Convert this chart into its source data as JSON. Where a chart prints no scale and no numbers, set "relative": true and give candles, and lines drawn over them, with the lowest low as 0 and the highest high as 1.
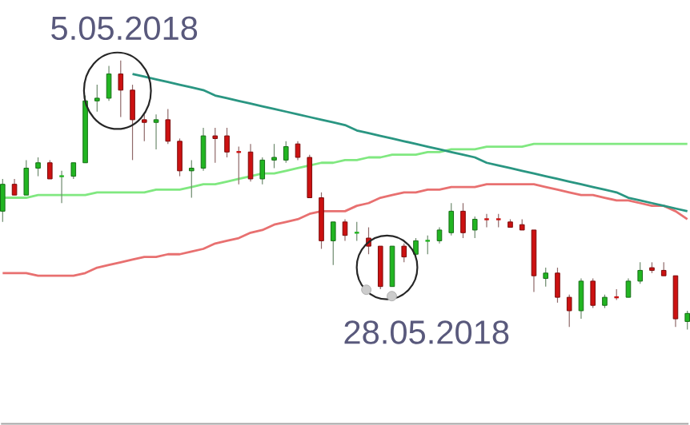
{
  "chart_data": {
    "type": "candlestick",
    "relative": true,
    "categories": [
      null,
      null,
      null,
      null,
      null,
      null,
      null,
      null,
      null,
      null,
      null,
      null,
      null,
      null,
      null,
      null,
      null,
      null,
      null,
      null,
      null,
      null,
      null,
      null,
      null,
      null,
      null,
      null,
      null,
      null,
      null,
      null,
      null,
      null,
      null,
      null,
      null,
      null,
      null,
      null,
      null,
      null,
      null,
      null,
      null,
      null,
      null,
      null,
      null,
      null,
      null,
      null,
      null,
      null,
      null,
      null,
      null,
      null,
      null
    ],
    "ohlc": [
      [
        0.44,
        0.56,
        0.4,
        0.54
      ],
      [
        0.54,
        0.56,
        0.5,
        0.5
      ],
      [
        0.5,
        0.63,
        0.5,
        0.6
      ],
      [
        0.6,
        0.64,
        0.57,
        0.62
      ],
      [
        0.62,
        0.63,
        0.56,
        0.56
      ],
      [
        0.57,
        0.59,
        0.47,
        0.57
      ],
      [
        0.57,
        0.62,
        0.56,
        0.62
      ],
      [
        0.62,
        0.87,
        0.62,
        0.85
      ],
      [
        0.85,
        0.91,
        0.81,
        0.86
      ],
      [
        0.86,
        0.98,
        0.85,
        0.95
      ],
      [
        0.95,
        1.0,
        0.79,
        0.89
      ],
      [
        0.89,
        0.91,
        0.63,
        0.78
      ],
      [
        0.78,
        0.8,
        0.7,
        0.77
      ],
      [
        0.77,
        0.8,
        0.67,
        0.78
      ],
      [
        0.78,
        0.82,
        0.69,
        0.7
      ],
      [
        0.7,
        0.71,
        0.57,
        0.59
      ],
      [
        0.59,
        0.63,
        0.49,
        0.6
      ],
      [
        0.6,
        0.75,
        0.59,
        0.72
      ],
      [
        0.72,
        0.75,
        0.62,
        0.71
      ],
      [
        0.72,
        0.75,
        0.64,
        0.66
      ],
      [
        0.66,
        0.68,
        0.54,
        0.66
      ],
      [
        0.66,
        0.69,
        0.55,
        0.56
      ],
      [
        0.56,
        0.64,
        0.54,
        0.63
      ],
      [
        0.63,
        0.69,
        0.6,
        0.64
      ],
      [
        0.63,
        0.7,
        0.62,
        0.68
      ],
      [
        0.69,
        0.7,
        0.63,
        0.64
      ],
      [
        0.64,
        0.65,
        0.49,
        0.49
      ],
      [
        0.49,
        0.51,
        0.3,
        0.33
      ],
      [
        0.33,
        0.4,
        0.24,
        0.4
      ],
      [
        0.4,
        0.41,
        0.33,
        0.35
      ],
      [
        0.36,
        0.4,
        0.33,
        0.36
      ],
      [
        0.34,
        0.38,
        0.28,
        0.31
      ],
      [
        0.31,
        0.31,
        0.15,
        0.16
      ],
      [
        0.16,
        0.31,
        0.16,
        0.31
      ],
      [
        0.31,
        0.32,
        0.25,
        0.27
      ],
      [
        0.28,
        0.34,
        0.27,
        0.33
      ],
      [
        0.33,
        0.35,
        0.28,
        0.33
      ],
      [
        0.33,
        0.38,
        0.32,
        0.37
      ],
      [
        0.36,
        0.47,
        0.35,
        0.44
      ],
      [
        0.44,
        0.47,
        0.34,
        0.36
      ],
      [
        0.37,
        0.42,
        0.34,
        0.41
      ],
      [
        0.41,
        0.43,
        0.38,
        0.41
      ],
      [
        0.41,
        0.43,
        0.38,
        0.41
      ],
      [
        0.4,
        0.41,
        0.38,
        0.38
      ],
      [
        0.39,
        0.41,
        0.37,
        0.37
      ],
      [
        0.37,
        0.37,
        0.14,
        0.2
      ],
      [
        0.19,
        0.23,
        0.16,
        0.21
      ],
      [
        0.21,
        0.23,
        0.1,
        0.12
      ],
      [
        0.12,
        0.13,
        0.01,
        0.07
      ],
      [
        0.07,
        0.19,
        0.04,
        0.18
      ],
      [
        0.18,
        0.19,
        0.08,
        0.09
      ],
      [
        0.09,
        0.13,
        0.08,
        0.12
      ],
      [
        0.12,
        0.15,
        0.11,
        0.12
      ],
      [
        0.12,
        0.19,
        0.12,
        0.18
      ],
      [
        0.18,
        0.25,
        0.17,
        0.22
      ],
      [
        0.23,
        0.25,
        0.21,
        0.22
      ],
      [
        0.22,
        0.25,
        0.2,
        0.2
      ],
      [
        0.2,
        0.2,
        0.01,
        0.04
      ],
      [
        0.03,
        0.07,
        0.0,
        0.06
      ]
    ],
    "colors": [
      "#22b522",
      "#cc1111",
      "#22b522",
      "#22b522",
      "#cc1111",
      "#22b522",
      "#22b522",
      "#22b522",
      "#22b522",
      "#22b522",
      "#cc1111",
      "#cc1111",
      "#cc1111",
      "#22b522",
      "#cc1111",
      "#cc1111",
      "#22b522",
      "#22b522",
      "#cc1111",
      "#cc1111",
      "#cc1111",
      "#cc1111",
      "#22b522",
      "#22b522",
      "#22b522",
      "#cc1111",
      "#cc1111",
      "#cc1111",
      "#22b522",
      "#cc1111",
      "#22b522",
      "#cc1111",
      "#cc1111",
      "#22b522",
      "#cc1111",
      "#22b522",
      "#22b522",
      "#22b522",
      "#22b522",
      "#cc1111",
      "#22b522",
      "#cc1111",
      "#cc1111",
      "#cc1111",
      "#cc1111",
      "#cc1111",
      "#22b522",
      "#cc1111",
      "#cc1111",
      "#22b522",
      "#cc1111",
      "#22b522",
      "#cc1111",
      "#22b522",
      "#22b522",
      "#cc1111",
      "#cc1111",
      "#cc1111",
      "#22b522"
    ],
    "series": [
      {
        "type": "line",
        "color": "#80e880",
        "values": [
          0.49,
          0.49,
          0.49,
          0.5,
          0.5,
          0.5,
          0.5,
          0.5,
          0.51,
          0.51,
          0.51,
          0.51,
          0.51,
          0.52,
          0.52,
          0.52,
          0.53,
          0.54,
          0.54,
          0.55,
          0.56,
          0.57,
          0.58,
          0.58,
          0.59,
          0.6,
          0.61,
          0.62,
          0.62,
          0.63,
          0.63,
          0.64,
          0.64,
          0.65,
          0.65,
          0.65,
          0.66,
          0.66,
          0.67,
          0.67,
          0.67,
          0.68,
          0.68,
          0.68,
          0.68,
          0.69,
          0.69,
          0.69,
          0.69,
          0.69,
          0.69,
          0.69,
          0.69,
          0.69,
          0.69,
          0.69,
          0.69,
          0.69,
          0.69
        ]
      },
      {
        "type": "line",
        "color": "#e87070",
        "values": [
          0.21,
          0.21,
          0.21,
          0.2,
          0.2,
          0.2,
          0.2,
          0.21,
          0.23,
          0.24,
          0.25,
          0.26,
          0.27,
          0.27,
          0.28,
          0.28,
          0.29,
          0.3,
          0.32,
          0.33,
          0.34,
          0.36,
          0.37,
          0.39,
          0.4,
          0.41,
          0.43,
          0.44,
          0.44,
          0.44,
          0.46,
          0.47,
          0.49,
          0.5,
          0.51,
          0.51,
          0.52,
          0.52,
          0.53,
          0.53,
          0.53,
          0.54,
          0.54,
          0.54,
          0.54,
          0.54,
          0.53,
          0.52,
          0.51,
          0.5,
          0.5,
          0.49,
          0.48,
          0.48,
          0.47,
          0.46,
          0.46,
          0.44,
          0.41
        ]
      },
      {
        "type": "line",
        "color": "#2a9682",
        "values": [
          null,
          null,
          null,
          null,
          null,
          null,
          null,
          null,
          null,
          null,
          null,
          0.95,
          0.94,
          0.93,
          0.92,
          0.91,
          0.9,
          0.89,
          0.87,
          0.86,
          0.85,
          0.84,
          0.83,
          0.82,
          0.81,
          0.8,
          0.79,
          0.78,
          0.77,
          0.76,
          0.74,
          0.73,
          0.72,
          0.71,
          0.7,
          0.69,
          0.68,
          0.67,
          0.66,
          0.65,
          0.64,
          0.62,
          0.61,
          0.6,
          0.59,
          0.58,
          0.57,
          0.56,
          0.55,
          0.54,
          0.53,
          0.52,
          0.51,
          0.49,
          0.48,
          0.47,
          0.46,
          0.45,
          0.44
        ]
      }
    ],
    "annotations": [
      "5.05.2018",
      "28.05.2018"
    ]
  }
}
